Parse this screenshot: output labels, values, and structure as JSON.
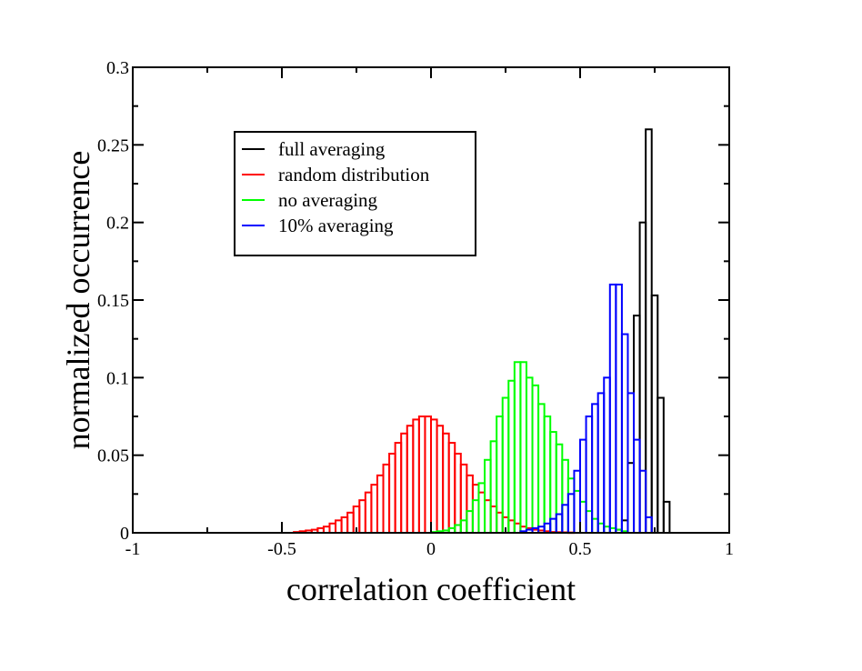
{
  "chart_data": {
    "type": "histogram",
    "xlabel": "correlation coefficient",
    "ylabel": "normalized occurrence",
    "xlim": [
      -1,
      1
    ],
    "ylim": [
      0,
      0.3
    ],
    "x_ticks": [
      -1,
      -0.5,
      0,
      0.5,
      1
    ],
    "x_tick_labels": [
      "-1",
      "-0.5",
      "0",
      "0.5",
      "1"
    ],
    "y_ticks": [
      0,
      0.05,
      0.1,
      0.15,
      0.2,
      0.25,
      0.3
    ],
    "y_tick_labels": [
      "0",
      "0.05",
      "0.1",
      "0.15",
      "0.2",
      "0.25",
      "0.3"
    ],
    "legend_position": "upper-left",
    "series": [
      {
        "name": "full averaging",
        "color": "#000000",
        "bin_width": 0.02,
        "bin_starts": [
          0.4,
          0.42,
          0.44,
          0.46,
          0.48,
          0.5,
          0.52,
          0.54,
          0.56,
          0.58,
          0.6,
          0.62,
          0.64,
          0.66,
          0.68,
          0.7,
          0.72,
          0.74,
          0.76,
          0.78,
          0.8
        ],
        "values": [
          0.0,
          0.0,
          0.0,
          0.0,
          0.0,
          0.0,
          0.0,
          0.0,
          0.0,
          0.0,
          0.0,
          0.002,
          0.008,
          0.045,
          0.14,
          0.2,
          0.26,
          0.153,
          0.087,
          0.02,
          0.0
        ]
      },
      {
        "name": "random distribution",
        "color": "#ff0000",
        "bin_width": 0.02,
        "bin_starts": [
          -0.46,
          -0.44,
          -0.42,
          -0.4,
          -0.38,
          -0.36,
          -0.34,
          -0.32,
          -0.3,
          -0.28,
          -0.26,
          -0.24,
          -0.22,
          -0.2,
          -0.18,
          -0.16,
          -0.14,
          -0.12,
          -0.1,
          -0.08,
          -0.06,
          -0.04,
          -0.02,
          0.0,
          0.02,
          0.04,
          0.06,
          0.08,
          0.1,
          0.12,
          0.14,
          0.16,
          0.18,
          0.2,
          0.22,
          0.24,
          0.26,
          0.28,
          0.3,
          0.32,
          0.34,
          0.36,
          0.38,
          0.4,
          0.42,
          0.44,
          0.46
        ],
        "values": [
          0.0005,
          0.001,
          0.0015,
          0.002,
          0.003,
          0.004,
          0.006,
          0.008,
          0.01,
          0.013,
          0.017,
          0.021,
          0.026,
          0.031,
          0.037,
          0.044,
          0.051,
          0.058,
          0.064,
          0.069,
          0.073,
          0.075,
          0.075,
          0.073,
          0.069,
          0.064,
          0.058,
          0.051,
          0.044,
          0.037,
          0.031,
          0.026,
          0.021,
          0.017,
          0.013,
          0.01,
          0.008,
          0.006,
          0.004,
          0.003,
          0.002,
          0.0015,
          0.001,
          0.0005,
          0.0004,
          0.0003,
          0.0002
        ]
      },
      {
        "name": "no averaging",
        "color": "#00ff00",
        "bin_width": 0.02,
        "bin_starts": [
          0.0,
          0.02,
          0.04,
          0.06,
          0.08,
          0.1,
          0.12,
          0.14,
          0.16,
          0.18,
          0.2,
          0.22,
          0.24,
          0.26,
          0.28,
          0.3,
          0.32,
          0.34,
          0.36,
          0.38,
          0.4,
          0.42,
          0.44,
          0.46,
          0.48,
          0.5,
          0.52,
          0.54,
          0.56,
          0.58,
          0.6,
          0.62,
          0.64
        ],
        "values": [
          0.0005,
          0.001,
          0.0015,
          0.003,
          0.005,
          0.008,
          0.014,
          0.021,
          0.032,
          0.047,
          0.059,
          0.075,
          0.087,
          0.098,
          0.11,
          0.11,
          0.1,
          0.095,
          0.083,
          0.075,
          0.065,
          0.057,
          0.047,
          0.035,
          0.027,
          0.02,
          0.014,
          0.009,
          0.006,
          0.004,
          0.003,
          0.002,
          0.001
        ]
      },
      {
        "name": "10% averaging",
        "color": "#0000ff",
        "bin_width": 0.02,
        "bin_starts": [
          0.3,
          0.32,
          0.34,
          0.36,
          0.38,
          0.4,
          0.42,
          0.44,
          0.46,
          0.48,
          0.5,
          0.52,
          0.54,
          0.56,
          0.58,
          0.6,
          0.62,
          0.64,
          0.66,
          0.68,
          0.7,
          0.72,
          0.74
        ],
        "values": [
          0.001,
          0.002,
          0.003,
          0.004,
          0.006,
          0.009,
          0.012,
          0.018,
          0.025,
          0.04,
          0.06,
          0.075,
          0.083,
          0.09,
          0.1,
          0.16,
          0.16,
          0.128,
          0.09,
          0.06,
          0.04,
          0.01,
          0.0
        ]
      }
    ]
  }
}
